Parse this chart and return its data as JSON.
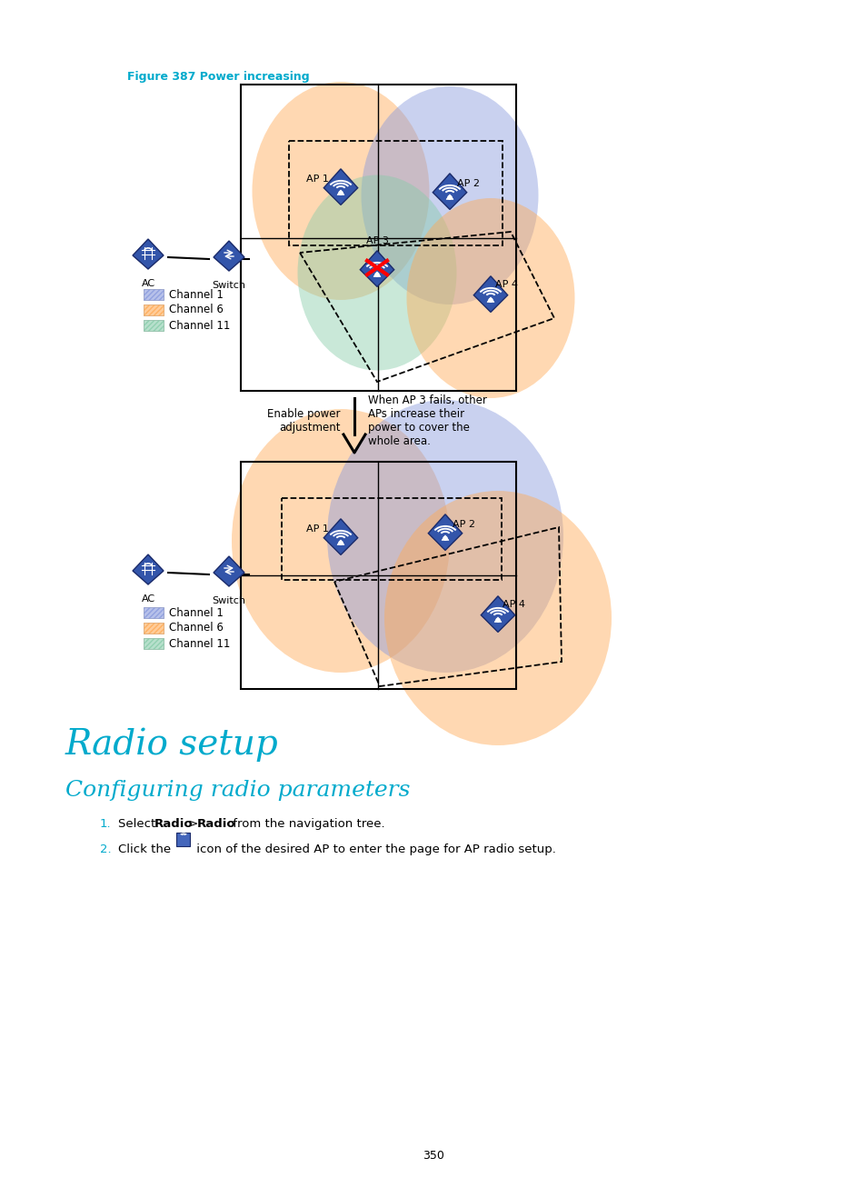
{
  "figure_title": "Figure 387 Power increasing",
  "title_color": "#00AACC",
  "page_number": "350",
  "section_title": "Radio setup",
  "subsection_title": "Configuring radio parameters",
  "arrow_text_left": "Enable power\nadjustment",
  "arrow_text_right": "When AP 3 fails, other\nAPs increase their\npower to cover the\nwhole area.",
  "channel1_color": "#8899DD",
  "channel6_color": "#FFAA55",
  "channel11_color": "#88CCAA",
  "legend_labels": [
    "Channel 1",
    "Channel 6",
    "Channel 11"
  ],
  "ap_color": "#3355AA",
  "ap_edge_color": "#1a2a6a",
  "bg_color": "#FFFFFF",
  "text_color": "#000000"
}
